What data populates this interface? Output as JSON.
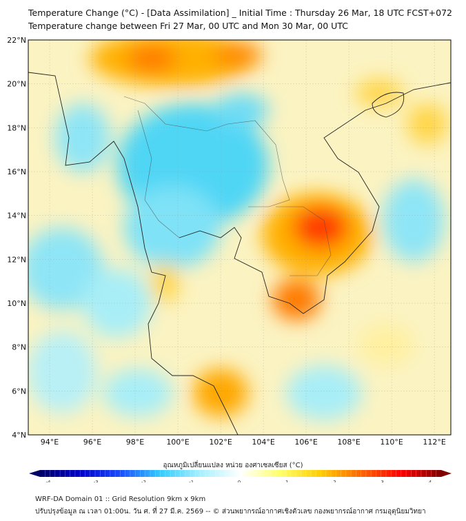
{
  "header": {
    "title_line1": "Temperature Change (°C) - [Data Assimilation] _ Initial Time : Thursday 26 Mar, 18 UTC FCST+072",
    "title_line2": "Temperature change between Fri 27 Mar, 00 UTC and Mon 30 Mar, 00 UTC"
  },
  "map": {
    "lat_labels": [
      "4°N",
      "6°N",
      "8°N",
      "10°N",
      "12°N",
      "14°N",
      "16°N",
      "18°N",
      "20°N",
      "22°N"
    ],
    "lat_values": [
      4,
      6,
      8,
      10,
      12,
      14,
      16,
      18,
      20,
      22
    ],
    "lon_labels": [
      "94°E",
      "96°E",
      "98°E",
      "100°E",
      "102°E",
      "104°E",
      "106°E",
      "108°E",
      "110°E",
      "112°E"
    ],
    "lon_values": [
      94,
      96,
      98,
      100,
      102,
      104,
      106,
      108,
      110,
      112
    ],
    "extent": {
      "lon_min": 93,
      "lon_max": 112.77,
      "lat_min": 4,
      "lat_max": 22
    }
  },
  "colorbar": {
    "label": "อุณหภูมิเปลี่ยนแปลง หน่วย องศาเซลเซียส (°C)",
    "ticks": [
      "-4",
      "-3",
      "-2",
      "-1",
      "0",
      "1",
      "2",
      "3",
      "4"
    ],
    "range": [
      -4,
      4
    ],
    "colors": [
      "#000066",
      "#0000cc",
      "#1a4dff",
      "#33ccff",
      "#a6f0ff",
      "#ffffff",
      "#ffff66",
      "#ffcc00",
      "#ff6600",
      "#ff0000",
      "#800000"
    ]
  },
  "footer": {
    "line1": "WRF-DA Domain 01 :: Grid Resolution 9km x 9km",
    "line2": "ปรับปรุงข้อมูล ณ เวลา 01:00น. วัน ศ. ที่ 27 มี.ค. 2569 -- © ส่วนพยากรณ์อากาศเชิงตัวเลข กองพยากรณ์อากาศ กรมอุตุนิยมวิทยา"
  }
}
